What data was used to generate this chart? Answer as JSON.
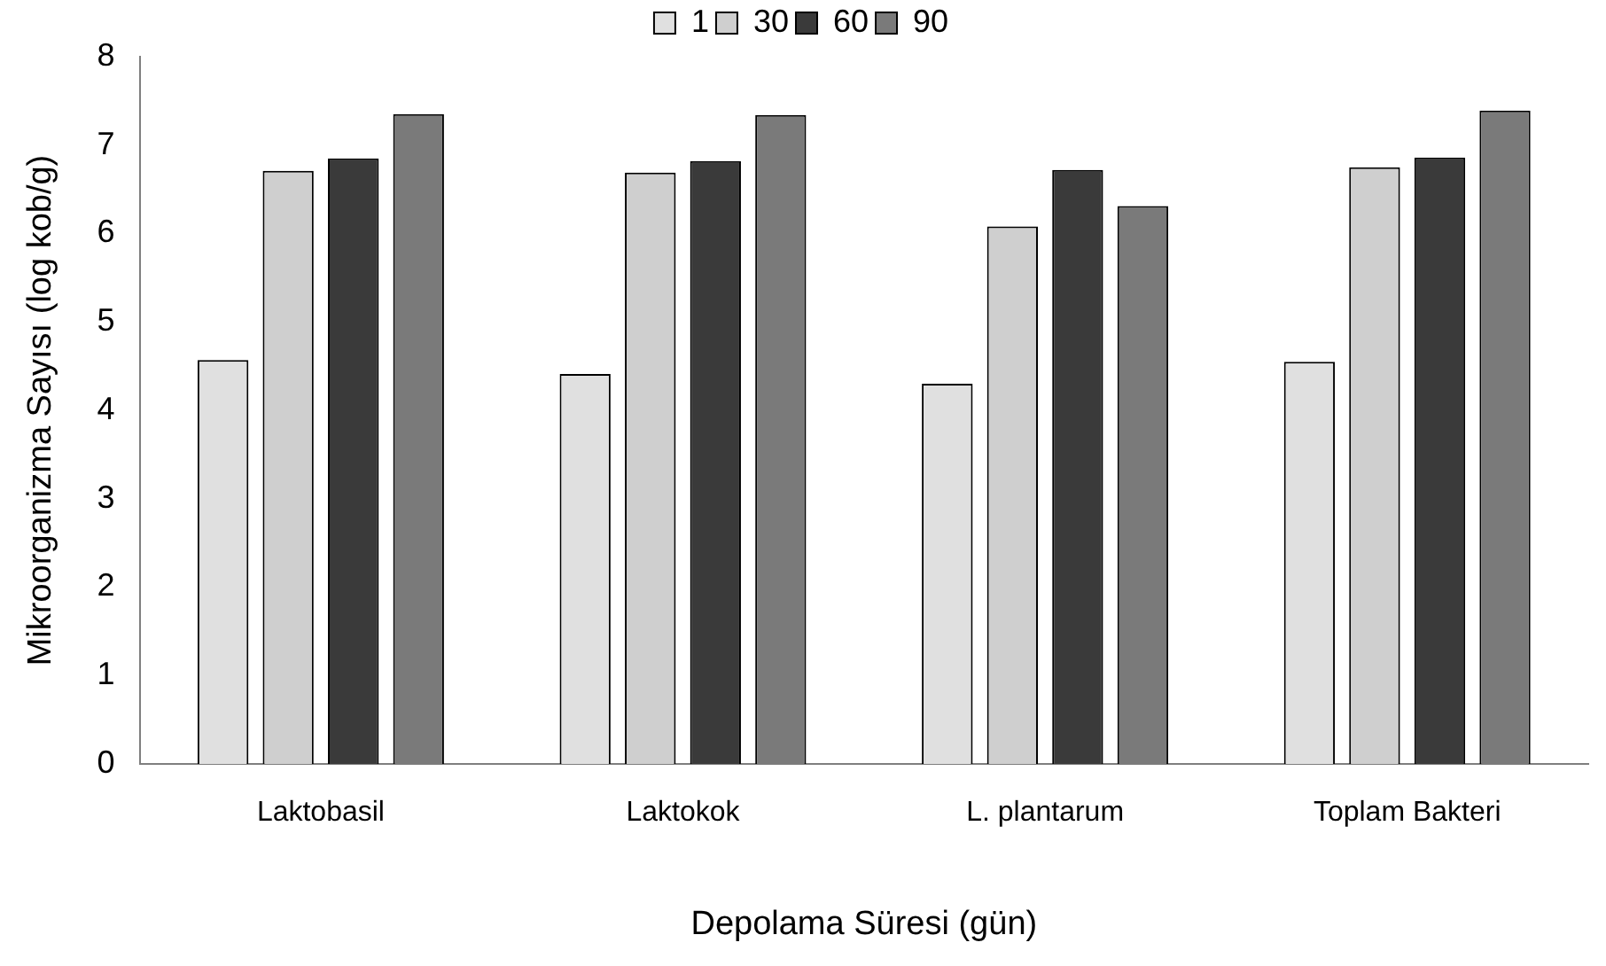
{
  "chart_data": {
    "type": "bar",
    "xlabel": "Depolama Süresi (gün)",
    "ylabel": "Mikroorganizma Sayısı (log kob/g)",
    "categories": [
      "Laktobasil",
      "Laktokok",
      "L. plantarum",
      "Toplam Bakteri"
    ],
    "series": [
      {
        "name": "1",
        "color": "#e0e0e0",
        "values": [
          4.57,
          4.41,
          4.3,
          4.55
        ]
      },
      {
        "name": "30",
        "color": "#cfcfcf",
        "values": [
          6.71,
          6.69,
          6.08,
          6.75
        ]
      },
      {
        "name": "60",
        "color": "#3a3a3a",
        "values": [
          6.85,
          6.82,
          6.72,
          6.86
        ]
      },
      {
        "name": "90",
        "color": "#7a7a7a",
        "values": [
          7.35,
          7.34,
          6.31,
          7.39
        ]
      }
    ],
    "ylim": [
      0,
      8
    ],
    "yticks": [
      0,
      1,
      2,
      3,
      4,
      5,
      6,
      7,
      8
    ],
    "grid": false,
    "legend": "top"
  }
}
